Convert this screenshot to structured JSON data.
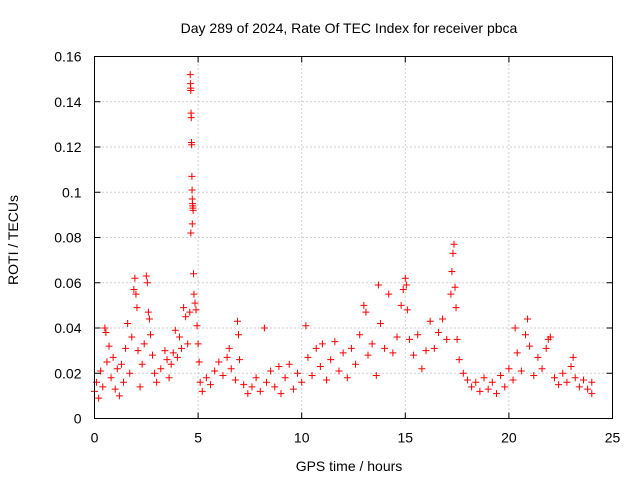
{
  "chart_data": {
    "type": "scatter",
    "title": "Day 289 of 2024, Rate Of TEC Index for receiver pbca",
    "xlabel": "GPS time / hours",
    "ylabel": "ROTI / TECUs",
    "xlim": [
      0,
      25
    ],
    "ylim": [
      0,
      0.16
    ],
    "x_ticks": [
      0,
      5,
      10,
      15,
      20,
      25
    ],
    "x_tick_labels": [
      "0",
      "5",
      "10",
      "15",
      "20",
      "25"
    ],
    "y_ticks": [
      0,
      0.02,
      0.04,
      0.06,
      0.08,
      0.1,
      0.12,
      0.14,
      0.16
    ],
    "y_tick_labels": [
      "0",
      "0.02",
      "0.04",
      "0.06",
      "0.08",
      "0.1",
      "0.12",
      "0.14",
      "0.16"
    ],
    "grid": true,
    "marker": "plus",
    "color": "#ff0000",
    "series": [
      {
        "points": [
          [
            0.0,
            0.012
          ],
          [
            0.1,
            0.016
          ],
          [
            0.2,
            0.009
          ],
          [
            0.3,
            0.021
          ],
          [
            0.4,
            0.014
          ],
          [
            0.5,
            0.04
          ],
          [
            0.55,
            0.038
          ],
          [
            0.6,
            0.025
          ],
          [
            0.7,
            0.032
          ],
          [
            0.8,
            0.018
          ],
          [
            0.9,
            0.027
          ],
          [
            1.0,
            0.013
          ],
          [
            1.1,
            0.022
          ],
          [
            1.2,
            0.01
          ],
          [
            1.3,
            0.024
          ],
          [
            1.4,
            0.016
          ],
          [
            1.5,
            0.031
          ],
          [
            1.6,
            0.042
          ],
          [
            1.7,
            0.02
          ],
          [
            1.8,
            0.036
          ],
          [
            1.9,
            0.057
          ],
          [
            1.95,
            0.062
          ],
          [
            2.0,
            0.055
          ],
          [
            2.05,
            0.049
          ],
          [
            2.1,
            0.03
          ],
          [
            2.2,
            0.014
          ],
          [
            2.3,
            0.024
          ],
          [
            2.4,
            0.033
          ],
          [
            2.5,
            0.063
          ],
          [
            2.55,
            0.06
          ],
          [
            2.6,
            0.047
          ],
          [
            2.65,
            0.044
          ],
          [
            2.7,
            0.037
          ],
          [
            2.8,
            0.028
          ],
          [
            2.9,
            0.02
          ],
          [
            3.0,
            0.016
          ],
          [
            3.2,
            0.022
          ],
          [
            3.4,
            0.03
          ],
          [
            3.5,
            0.026
          ],
          [
            3.6,
            0.018
          ],
          [
            3.7,
            0.024
          ],
          [
            3.8,
            0.029
          ],
          [
            3.9,
            0.039
          ],
          [
            4.0,
            0.027
          ],
          [
            4.1,
            0.036
          ],
          [
            4.2,
            0.031
          ],
          [
            4.3,
            0.049
          ],
          [
            4.4,
            0.045
          ],
          [
            4.5,
            0.033
          ],
          [
            4.6,
            0.047
          ],
          [
            4.62,
            0.152
          ],
          [
            4.63,
            0.148
          ],
          [
            4.64,
            0.146
          ],
          [
            4.65,
            0.145
          ],
          [
            4.66,
            0.135
          ],
          [
            4.67,
            0.133
          ],
          [
            4.68,
            0.122
          ],
          [
            4.69,
            0.121
          ],
          [
            4.7,
            0.107
          ],
          [
            4.71,
            0.101
          ],
          [
            4.72,
            0.097
          ],
          [
            4.73,
            0.095
          ],
          [
            4.74,
            0.094
          ],
          [
            4.75,
            0.093
          ],
          [
            4.76,
            0.092
          ],
          [
            4.65,
            0.082
          ],
          [
            4.72,
            0.086
          ],
          [
            4.78,
            0.064
          ],
          [
            4.8,
            0.055
          ],
          [
            4.85,
            0.051
          ],
          [
            4.9,
            0.048
          ],
          [
            4.95,
            0.041
          ],
          [
            5.0,
            0.033
          ],
          [
            5.05,
            0.025
          ],
          [
            5.1,
            0.016
          ],
          [
            5.2,
            0.012
          ],
          [
            5.4,
            0.018
          ],
          [
            5.6,
            0.015
          ],
          [
            5.8,
            0.021
          ],
          [
            6.0,
            0.025
          ],
          [
            6.2,
            0.019
          ],
          [
            6.4,
            0.027
          ],
          [
            6.5,
            0.031
          ],
          [
            6.6,
            0.022
          ],
          [
            6.8,
            0.017
          ],
          [
            6.9,
            0.043
          ],
          [
            6.95,
            0.037
          ],
          [
            7.0,
            0.026
          ],
          [
            7.2,
            0.015
          ],
          [
            7.4,
            0.011
          ],
          [
            7.6,
            0.014
          ],
          [
            7.8,
            0.018
          ],
          [
            8.0,
            0.012
          ],
          [
            8.2,
            0.04
          ],
          [
            8.3,
            0.016
          ],
          [
            8.5,
            0.021
          ],
          [
            8.7,
            0.014
          ],
          [
            8.9,
            0.023
          ],
          [
            9.0,
            0.011
          ],
          [
            9.2,
            0.018
          ],
          [
            9.4,
            0.024
          ],
          [
            9.6,
            0.013
          ],
          [
            9.8,
            0.02
          ],
          [
            10.0,
            0.016
          ],
          [
            10.2,
            0.041
          ],
          [
            10.3,
            0.027
          ],
          [
            10.5,
            0.019
          ],
          [
            10.7,
            0.031
          ],
          [
            10.9,
            0.023
          ],
          [
            11.0,
            0.033
          ],
          [
            11.2,
            0.017
          ],
          [
            11.4,
            0.026
          ],
          [
            11.6,
            0.034
          ],
          [
            11.8,
            0.021
          ],
          [
            12.0,
            0.029
          ],
          [
            12.2,
            0.018
          ],
          [
            12.4,
            0.031
          ],
          [
            12.6,
            0.024
          ],
          [
            12.8,
            0.037
          ],
          [
            13.0,
            0.05
          ],
          [
            13.1,
            0.047
          ],
          [
            13.2,
            0.028
          ],
          [
            13.4,
            0.033
          ],
          [
            13.6,
            0.019
          ],
          [
            13.7,
            0.059
          ],
          [
            13.8,
            0.042
          ],
          [
            14.0,
            0.031
          ],
          [
            14.2,
            0.055
          ],
          [
            14.4,
            0.029
          ],
          [
            14.6,
            0.036
          ],
          [
            14.8,
            0.05
          ],
          [
            14.9,
            0.057
          ],
          [
            15.0,
            0.062
          ],
          [
            15.05,
            0.059
          ],
          [
            15.1,
            0.048
          ],
          [
            15.2,
            0.035
          ],
          [
            15.4,
            0.028
          ],
          [
            15.6,
            0.037
          ],
          [
            15.8,
            0.022
          ],
          [
            16.0,
            0.03
          ],
          [
            16.2,
            0.043
          ],
          [
            16.4,
            0.031
          ],
          [
            16.6,
            0.038
          ],
          [
            16.8,
            0.044
          ],
          [
            17.0,
            0.035
          ],
          [
            17.2,
            0.055
          ],
          [
            17.25,
            0.065
          ],
          [
            17.3,
            0.073
          ],
          [
            17.35,
            0.077
          ],
          [
            17.4,
            0.058
          ],
          [
            17.45,
            0.049
          ],
          [
            17.5,
            0.035
          ],
          [
            17.6,
            0.026
          ],
          [
            17.8,
            0.02
          ],
          [
            18.0,
            0.017
          ],
          [
            18.2,
            0.014
          ],
          [
            18.4,
            0.016
          ],
          [
            18.6,
            0.012
          ],
          [
            18.8,
            0.018
          ],
          [
            19.0,
            0.013
          ],
          [
            19.2,
            0.016
          ],
          [
            19.4,
            0.011
          ],
          [
            19.6,
            0.019
          ],
          [
            19.8,
            0.014
          ],
          [
            20.0,
            0.022
          ],
          [
            20.2,
            0.017
          ],
          [
            20.3,
            0.04
          ],
          [
            20.4,
            0.029
          ],
          [
            20.6,
            0.021
          ],
          [
            20.8,
            0.037
          ],
          [
            20.9,
            0.044
          ],
          [
            21.0,
            0.032
          ],
          [
            21.2,
            0.019
          ],
          [
            21.4,
            0.027
          ],
          [
            21.6,
            0.022
          ],
          [
            21.8,
            0.031
          ],
          [
            21.9,
            0.035
          ],
          [
            22.0,
            0.036
          ],
          [
            22.2,
            0.018
          ],
          [
            22.4,
            0.015
          ],
          [
            22.6,
            0.02
          ],
          [
            22.8,
            0.016
          ],
          [
            23.0,
            0.023
          ],
          [
            23.1,
            0.027
          ],
          [
            23.2,
            0.018
          ],
          [
            23.4,
            0.014
          ],
          [
            23.6,
            0.017
          ],
          [
            23.8,
            0.013
          ],
          [
            24.0,
            0.016
          ],
          [
            24.0,
            0.011
          ]
        ]
      }
    ]
  }
}
